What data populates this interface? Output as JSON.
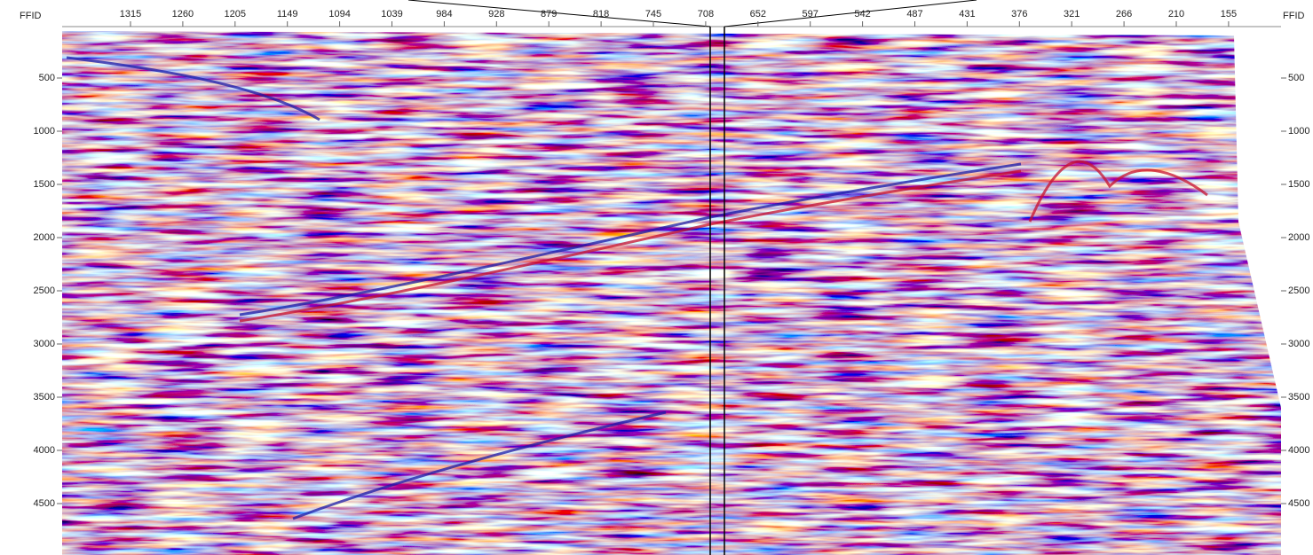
{
  "axes": {
    "left_title": "FFID",
    "right_title": "FFID",
    "top_ticks": [
      1315,
      1260,
      1205,
      1149,
      1094,
      1039,
      984,
      928,
      879,
      818,
      745,
      708,
      652,
      597,
      542,
      487,
      431,
      376,
      321,
      266,
      210,
      155
    ],
    "left_ticks": [
      500,
      1000,
      1500,
      2000,
      2500,
      3000,
      3500,
      4000,
      4500
    ],
    "right_ticks": [
      500,
      1000,
      1500,
      2000,
      2500,
      3000,
      3500,
      4000,
      4500
    ]
  }
}
